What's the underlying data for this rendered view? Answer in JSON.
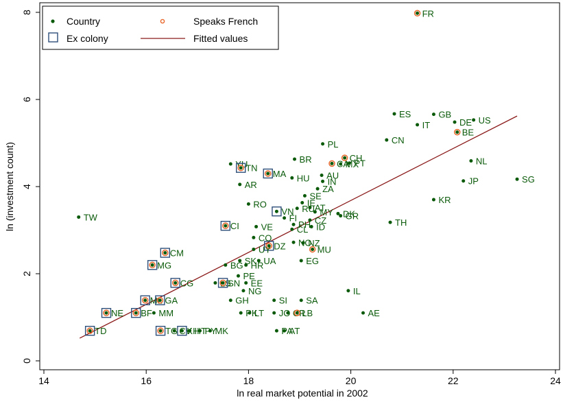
{
  "chart_data": {
    "type": "scatter",
    "xlabel": "ln real market potential in 2002",
    "ylabel": "ln (investment count)",
    "xlim": [
      14,
      24
    ],
    "ylim": [
      0,
      8
    ],
    "xticks": [
      "14",
      "16",
      "18",
      "20",
      "22",
      "24"
    ],
    "yticks": [
      "0",
      "2",
      "4",
      "6",
      "8"
    ],
    "grid": false,
    "legend_position": "top-left",
    "legend": {
      "country": "Country",
      "speaks_french": "Speaks French",
      "ex_colony": "Ex colony",
      "fitted": "Fitted values"
    },
    "colors": {
      "country": "#0a5a0a",
      "french": "#e8672a",
      "colony": "#2e4f7a",
      "fit": "#8b1a1a"
    },
    "fitted_line": {
      "x": [
        14.7,
        23.25
      ],
      "y": [
        0.52,
        5.62
      ]
    },
    "points": [
      {
        "label": "FR",
        "x": 21.3,
        "y": 7.98,
        "french": true,
        "colony": false
      },
      {
        "label": "ES",
        "x": 20.85,
        "y": 5.67,
        "french": false,
        "colony": false
      },
      {
        "label": "GB",
        "x": 21.62,
        "y": 5.66,
        "french": false,
        "colony": false
      },
      {
        "label": "DE",
        "x": 22.03,
        "y": 5.48,
        "french": false,
        "colony": false
      },
      {
        "label": "US",
        "x": 22.4,
        "y": 5.53,
        "french": false,
        "colony": false
      },
      {
        "label": "IT",
        "x": 21.3,
        "y": 5.42,
        "french": false,
        "colony": false
      },
      {
        "label": "BE",
        "x": 22.08,
        "y": 5.25,
        "french": true,
        "colony": false
      },
      {
        "label": "CN",
        "x": 20.7,
        "y": 5.07,
        "french": false,
        "colony": false
      },
      {
        "label": "PL",
        "x": 19.45,
        "y": 4.98,
        "french": false,
        "colony": false
      },
      {
        "label": "NL",
        "x": 22.35,
        "y": 4.59,
        "french": false,
        "colony": false
      },
      {
        "label": "BR",
        "x": 18.9,
        "y": 4.63,
        "french": false,
        "colony": false
      },
      {
        "label": "CH",
        "x": 19.88,
        "y": 4.66,
        "french": true,
        "colony": false
      },
      {
        "label": "CA",
        "x": 19.63,
        "y": 4.53,
        "french": true,
        "colony": false
      },
      {
        "label": "MX",
        "x": 19.8,
        "y": 4.52,
        "french": false,
        "colony": false
      },
      {
        "label": "PT",
        "x": 19.97,
        "y": 4.54,
        "french": false,
        "colony": false
      },
      {
        "label": "YU",
        "x": 17.65,
        "y": 4.52,
        "french": false,
        "colony": false
      },
      {
        "label": "TN",
        "x": 17.85,
        "y": 4.43,
        "french": true,
        "colony": true
      },
      {
        "label": "MA",
        "x": 18.38,
        "y": 4.3,
        "french": true,
        "colony": true
      },
      {
        "label": "AU",
        "x": 19.43,
        "y": 4.26,
        "french": false,
        "colony": false
      },
      {
        "label": "HU",
        "x": 18.85,
        "y": 4.2,
        "french": false,
        "colony": false
      },
      {
        "label": "JP",
        "x": 22.2,
        "y": 4.13,
        "french": false,
        "colony": false
      },
      {
        "label": "SG",
        "x": 23.25,
        "y": 4.17,
        "french": false,
        "colony": false
      },
      {
        "label": "IN",
        "x": 19.45,
        "y": 4.12,
        "french": false,
        "colony": false
      },
      {
        "label": "AR",
        "x": 17.83,
        "y": 4.05,
        "french": false,
        "colony": false
      },
      {
        "label": "ZA",
        "x": 19.35,
        "y": 3.95,
        "french": false,
        "colony": false
      },
      {
        "label": "SE",
        "x": 19.1,
        "y": 3.79,
        "french": false,
        "colony": false
      },
      {
        "label": "IE",
        "x": 19.05,
        "y": 3.63,
        "french": false,
        "colony": false
      },
      {
        "label": "KR",
        "x": 21.62,
        "y": 3.7,
        "french": false,
        "colony": false
      },
      {
        "label": "RO",
        "x": 18.0,
        "y": 3.6,
        "french": false,
        "colony": false
      },
      {
        "label": "RU",
        "x": 18.95,
        "y": 3.5,
        "french": false,
        "colony": false
      },
      {
        "label": "AT",
        "x": 19.2,
        "y": 3.52,
        "french": false,
        "colony": false
      },
      {
        "label": "VN",
        "x": 18.55,
        "y": 3.43,
        "french": false,
        "colony": true
      },
      {
        "label": "MY",
        "x": 19.3,
        "y": 3.42,
        "french": false,
        "colony": false
      },
      {
        "label": "DK",
        "x": 19.75,
        "y": 3.38,
        "french": false,
        "colony": false
      },
      {
        "label": "GR",
        "x": 19.8,
        "y": 3.33,
        "french": false,
        "colony": false
      },
      {
        "label": "TW",
        "x": 14.68,
        "y": 3.3,
        "french": false,
        "colony": false
      },
      {
        "label": "FI",
        "x": 18.7,
        "y": 3.28,
        "french": false,
        "colony": false
      },
      {
        "label": "CZ",
        "x": 19.2,
        "y": 3.23,
        "french": false,
        "colony": false
      },
      {
        "label": "TH",
        "x": 20.77,
        "y": 3.18,
        "french": false,
        "colony": false
      },
      {
        "label": "PH",
        "x": 18.88,
        "y": 3.13,
        "french": false,
        "colony": false
      },
      {
        "label": "ID",
        "x": 19.23,
        "y": 3.08,
        "french": false,
        "colony": false
      },
      {
        "label": "CI",
        "x": 17.55,
        "y": 3.1,
        "french": true,
        "colony": true
      },
      {
        "label": "VE",
        "x": 18.15,
        "y": 3.08,
        "french": false,
        "colony": false
      },
      {
        "label": "CL",
        "x": 18.85,
        "y": 3.02,
        "french": false,
        "colony": false
      },
      {
        "label": "CO",
        "x": 18.1,
        "y": 2.83,
        "french": false,
        "colony": false
      },
      {
        "label": "NO",
        "x": 18.88,
        "y": 2.72,
        "french": false,
        "colony": false
      },
      {
        "label": "NZ",
        "x": 19.07,
        "y": 2.71,
        "french": false,
        "colony": false
      },
      {
        "label": "DZ",
        "x": 18.4,
        "y": 2.64,
        "french": true,
        "colony": true
      },
      {
        "label": "UY",
        "x": 18.1,
        "y": 2.56,
        "french": false,
        "colony": false
      },
      {
        "label": "MU",
        "x": 19.25,
        "y": 2.56,
        "french": true,
        "colony": false
      },
      {
        "label": "CM",
        "x": 16.37,
        "y": 2.48,
        "french": true,
        "colony": true
      },
      {
        "label": "SK",
        "x": 17.83,
        "y": 2.3,
        "french": false,
        "colony": false
      },
      {
        "label": "UA",
        "x": 18.2,
        "y": 2.3,
        "french": false,
        "colony": false
      },
      {
        "label": "EG",
        "x": 19.03,
        "y": 2.3,
        "french": false,
        "colony": false
      },
      {
        "label": "MG",
        "x": 16.12,
        "y": 2.2,
        "french": true,
        "colony": true
      },
      {
        "label": "BG",
        "x": 17.55,
        "y": 2.2,
        "french": false,
        "colony": false
      },
      {
        "label": "HR",
        "x": 17.95,
        "y": 2.2,
        "french": false,
        "colony": false
      },
      {
        "label": "PE",
        "x": 17.8,
        "y": 1.95,
        "french": false,
        "colony": false
      },
      {
        "label": "CG",
        "x": 16.57,
        "y": 1.79,
        "french": true,
        "colony": true
      },
      {
        "label": "LS",
        "x": 17.35,
        "y": 1.79,
        "french": false,
        "colony": false
      },
      {
        "label": "SN",
        "x": 17.5,
        "y": 1.79,
        "french": true,
        "colony": true
      },
      {
        "label": "EE",
        "x": 17.95,
        "y": 1.79,
        "french": false,
        "colony": false
      },
      {
        "label": "NG",
        "x": 17.9,
        "y": 1.61,
        "french": false,
        "colony": false
      },
      {
        "label": "IL",
        "x": 19.95,
        "y": 1.61,
        "french": false,
        "colony": false
      },
      {
        "label": "ML",
        "x": 15.98,
        "y": 1.39,
        "french": true,
        "colony": true
      },
      {
        "label": "GA",
        "x": 16.27,
        "y": 1.39,
        "french": true,
        "colony": true
      },
      {
        "label": "GH",
        "x": 17.65,
        "y": 1.39,
        "french": false,
        "colony": false
      },
      {
        "label": "SI",
        "x": 18.5,
        "y": 1.39,
        "french": false,
        "colony": false
      },
      {
        "label": "SA",
        "x": 19.03,
        "y": 1.39,
        "french": false,
        "colony": false
      },
      {
        "label": "NE",
        "x": 15.22,
        "y": 1.1,
        "french": true,
        "colony": true
      },
      {
        "label": "BF",
        "x": 15.8,
        "y": 1.1,
        "french": true,
        "colony": true
      },
      {
        "label": "MM",
        "x": 16.15,
        "y": 1.1,
        "french": false,
        "colony": false
      },
      {
        "label": "PK",
        "x": 17.85,
        "y": 1.1,
        "french": false,
        "colony": false
      },
      {
        "label": "LT",
        "x": 18.02,
        "y": 1.1,
        "french": false,
        "colony": false
      },
      {
        "label": "JO",
        "x": 18.5,
        "y": 1.1,
        "french": false,
        "colony": false
      },
      {
        "label": "CR",
        "x": 18.77,
        "y": 1.1,
        "french": false,
        "colony": false
      },
      {
        "label": "LB",
        "x": 18.95,
        "y": 1.1,
        "french": true,
        "colony": false
      },
      {
        "label": "AE",
        "x": 20.24,
        "y": 1.1,
        "french": false,
        "colony": false
      },
      {
        "label": "TD",
        "x": 14.9,
        "y": 0.69,
        "french": true,
        "colony": true
      },
      {
        "label": "TG",
        "x": 16.28,
        "y": 0.69,
        "french": true,
        "colony": true
      },
      {
        "label": "CV",
        "x": 16.55,
        "y": 0.69,
        "french": false,
        "colony": false
      },
      {
        "label": "KH",
        "x": 16.7,
        "y": 0.69,
        "french": false,
        "colony": true
      },
      {
        "label": "HT",
        "x": 16.85,
        "y": 0.69,
        "french": false,
        "colony": false
      },
      {
        "label": "PY",
        "x": 17.05,
        "y": 0.69,
        "french": false,
        "colony": false
      },
      {
        "label": "MK",
        "x": 17.25,
        "y": 0.69,
        "french": false,
        "colony": false
      },
      {
        "label": "PA",
        "x": 18.55,
        "y": 0.69,
        "french": false,
        "colony": false
      },
      {
        "label": "AT",
        "x": 18.7,
        "y": 0.69,
        "french": false,
        "colony": false
      }
    ]
  }
}
